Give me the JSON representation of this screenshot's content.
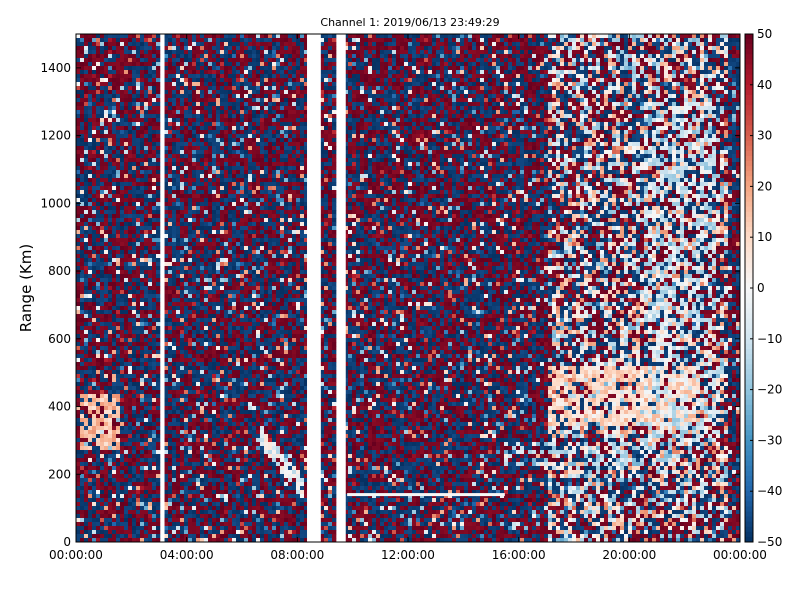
{
  "chart_data": {
    "type": "heatmap",
    "title": "Channel 1: 2019/06/13 23:49:29",
    "xlabel": "",
    "ylabel": "Range (Km)",
    "x_tick_labels": [
      "00:00:00",
      "04:00:00",
      "08:00:00",
      "12:00:00",
      "16:00:00",
      "20:00:00",
      "00:00:00"
    ],
    "x_range_hours": [
      0,
      24
    ],
    "y_ticks": [
      0,
      200,
      400,
      600,
      800,
      1000,
      1200,
      1400
    ],
    "ylim": [
      0,
      1500
    ],
    "colorbar": {
      "ticks": [
        50,
        40,
        30,
        20,
        10,
        0,
        -10,
        -20,
        -30,
        -40,
        -50
      ],
      "range": [
        -50,
        50
      ],
      "colormap": "RdBu_r",
      "colors": [
        "#053061",
        "#2166ac",
        "#4393c3",
        "#92c5de",
        "#d1e5f0",
        "#f7f7f7",
        "#fddbc7",
        "#f4a582",
        "#d6604d",
        "#b2182b",
        "#67001f"
      ]
    },
    "data_gaps_hours": [
      [
        3.05,
        3.2
      ],
      [
        8.35,
        8.85
      ],
      [
        9.45,
        9.75
      ]
    ],
    "features": [
      {
        "kind": "cluster",
        "hours": [
          0.1,
          1.6
        ],
        "range_km": [
          270,
          440
        ],
        "value": 15
      },
      {
        "kind": "streak",
        "hours": [
          6.6,
          8.3
        ],
        "range_km_start": 320,
        "range_km_end": 150,
        "value": -5
      },
      {
        "kind": "horizontal-line",
        "hours": [
          9.8,
          15.5
        ],
        "range_km": 140,
        "value": 0
      },
      {
        "kind": "cluster",
        "hours": [
          17.0,
          22.5
        ],
        "range_km": [
          340,
          520
        ],
        "value": 10
      },
      {
        "kind": "arc",
        "hours": [
          15.5,
          21.5
        ],
        "range_km": [
          220,
          300
        ],
        "value": -15
      },
      {
        "kind": "arc",
        "hours": [
          20.5,
          23.2
        ],
        "range_km": [
          300,
          1300
        ],
        "value": -10
      }
    ]
  }
}
